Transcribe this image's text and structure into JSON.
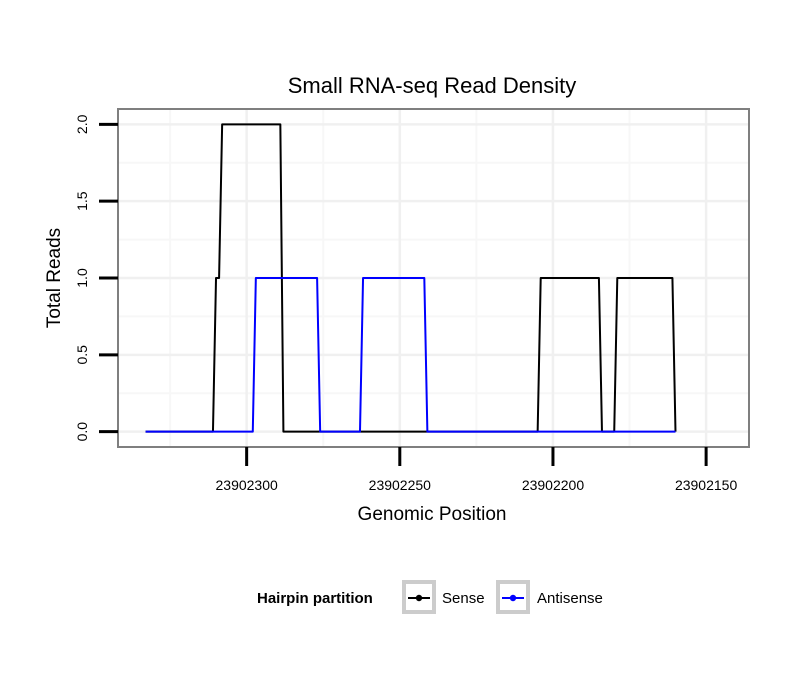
{
  "chart_data": {
    "type": "line",
    "title": "Small RNA-seq Read Density",
    "xlabel": "Genomic Position",
    "ylabel": "Total Reads",
    "x_reversed": true,
    "xlim": [
      23902342,
      23902136
    ],
    "ylim": [
      -0.1,
      2.1
    ],
    "x_ticks": [
      23902300,
      23902250,
      23902200,
      23902150
    ],
    "x_tick_labels": [
      "23902300",
      "23902250",
      "23902200",
      "23902150"
    ],
    "y_ticks": [
      0,
      0.5,
      1,
      1.5,
      2
    ],
    "y_tick_labels": [
      "0.0",
      "0.5",
      "1.0",
      "1.5",
      "2.0"
    ],
    "grid": true,
    "series": [
      {
        "name": "Sense",
        "color": "#000000",
        "x": [
          23902333,
          23902311,
          23902310,
          23902309,
          23902308,
          23902289,
          23902288,
          23902205,
          23902204,
          23902185,
          23902184,
          23902180,
          23902179,
          23902161,
          23902160
        ],
        "y": [
          0,
          0,
          1,
          1,
          2,
          2,
          0,
          0,
          1,
          1,
          0,
          0,
          1,
          1,
          0
        ]
      },
      {
        "name": "Antisense",
        "color": "#0000ff",
        "x": [
          23902333,
          23902298,
          23902297,
          23902277,
          23902276,
          23902263,
          23902262,
          23902242,
          23902241,
          23902160
        ],
        "y": [
          0,
          0,
          1,
          1,
          0,
          0,
          1,
          1,
          0,
          0
        ]
      }
    ],
    "legend": {
      "title": "Hairpin partition",
      "position": "bottom",
      "entries": [
        "Sense",
        "Antisense"
      ]
    }
  }
}
